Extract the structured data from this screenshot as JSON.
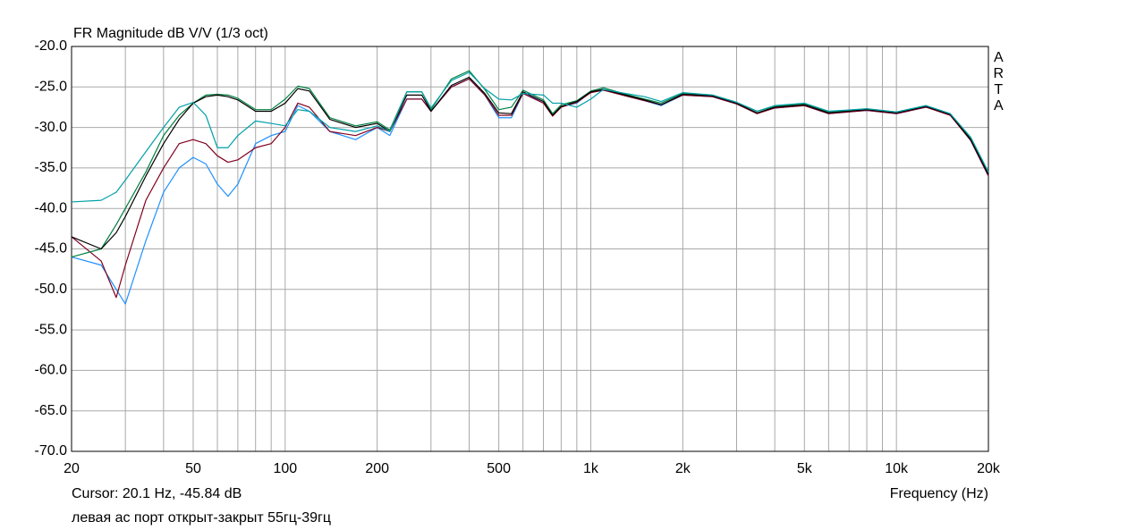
{
  "chart_data": {
    "type": "line",
    "title": "FR Magnitude dB V/V (1/3 oct)",
    "brand": "ARTA",
    "cursor_text": "Cursor: 20.1 Hz, -45.84 dB",
    "x_label": "Frequency (Hz)",
    "caption": "левая ас порт открыт-закрыт 55гц-39гц",
    "x_scale": "log",
    "grid": true,
    "xlim": [
      20,
      20000
    ],
    "ylim": [
      -70,
      -20
    ],
    "xticks": [
      20,
      50,
      100,
      200,
      500,
      {
        "value": 1000,
        "label": "1k"
      },
      {
        "value": 2000,
        "label": "2k"
      },
      {
        "value": 5000,
        "label": "5k"
      },
      {
        "value": 10000,
        "label": "10k"
      },
      {
        "value": 20000,
        "label": "20k"
      }
    ],
    "x_minor_grid": [
      30,
      40,
      60,
      70,
      80,
      90,
      300,
      400,
      600,
      700,
      800,
      900,
      3000,
      4000,
      6000,
      7000,
      8000,
      9000
    ],
    "yticks": [
      {
        "value": -20,
        "label": "-20.0"
      },
      {
        "value": -25,
        "label": "-25.0"
      },
      {
        "value": -30,
        "label": "-30.0"
      },
      {
        "value": -35,
        "label": "-35.0"
      },
      {
        "value": -40,
        "label": "-40.0"
      },
      {
        "value": -45,
        "label": "-45.0"
      },
      {
        "value": -50,
        "label": "-50.0"
      },
      {
        "value": -55,
        "label": "-55.0"
      },
      {
        "value": -60,
        "label": "-60.0"
      },
      {
        "value": -65,
        "label": "-65.0"
      },
      {
        "value": -70,
        "label": "-70.0"
      }
    ],
    "x": [
      20,
      25,
      28,
      30,
      35,
      40,
      45,
      50,
      55,
      60,
      65,
      70,
      80,
      90,
      100,
      110,
      120,
      140,
      170,
      200,
      220,
      250,
      280,
      300,
      350,
      400,
      450,
      500,
      550,
      600,
      700,
      750,
      800,
      900,
      1000,
      1100,
      1300,
      1500,
      1700,
      2000,
      2500,
      3000,
      3500,
      4000,
      5000,
      6000,
      8000,
      10000,
      12500,
      15000,
      17500,
      20000
    ],
    "series": [
      {
        "color": "#1e90ff",
        "values": [
          -46,
          -47,
          -50,
          -51.8,
          -44,
          -38,
          -35,
          -33.7,
          -34.5,
          -37,
          -38.5,
          -37,
          -32,
          -31,
          -30.5,
          -27.3,
          -28,
          -30.5,
          -31.5,
          -30,
          -31,
          -26.5,
          -26.5,
          -28,
          -25,
          -24,
          -26,
          -28.8,
          -28.8,
          -25.8,
          -26.8,
          -28.5,
          -27.4,
          -27,
          -25.6,
          -25.3,
          -26.1,
          -26.7,
          -27.3,
          -26,
          -26.2,
          -27.1,
          -28.2,
          -27.6,
          -27.3,
          -28.3,
          -27.9,
          -28.3,
          -27.5,
          -28.4,
          -31.6,
          -36
        ]
      },
      {
        "color": "#800020",
        "values": [
          -43.5,
          -46.5,
          -51,
          -47,
          -39,
          -35,
          -32,
          -31.5,
          -32,
          -33.5,
          -34.3,
          -34,
          -32.5,
          -32,
          -30,
          -27,
          -27.5,
          -30.5,
          -31,
          -30,
          -30.5,
          -26.5,
          -26.5,
          -28,
          -25,
          -24,
          -26,
          -28.5,
          -28.5,
          -25.8,
          -27,
          -28.6,
          -27.5,
          -26.9,
          -25.7,
          -25.4,
          -26.1,
          -26.7,
          -27.2,
          -26,
          -26.2,
          -27.1,
          -28.3,
          -27.6,
          -27.3,
          -28.3,
          -27.9,
          -28.3,
          -27.5,
          -28.5,
          -31.6,
          -36
        ]
      },
      {
        "color": "#008040",
        "values": [
          -46,
          -45,
          -42,
          -40,
          -35.5,
          -31,
          -28.5,
          -27,
          -26,
          -25.9,
          -26,
          -26.4,
          -27.8,
          -27.8,
          -26.5,
          -24.9,
          -25.2,
          -28.8,
          -29.8,
          -29.3,
          -30.3,
          -25.6,
          -25.6,
          -27.8,
          -24,
          -23,
          -25.3,
          -27.8,
          -27.5,
          -25.4,
          -26.6,
          -28.3,
          -27.2,
          -26.7,
          -25.5,
          -25.1,
          -25.9,
          -26.5,
          -27,
          -25.8,
          -26,
          -26.9,
          -28,
          -27.4,
          -27.1,
          -28.1,
          -27.7,
          -28.1,
          -27.3,
          -28.3,
          -31.3,
          -35.6
        ]
      },
      {
        "color": "#000000",
        "values": [
          -43.5,
          -45,
          -43,
          -41,
          -36,
          -32,
          -29,
          -27,
          -26.2,
          -26,
          -26.2,
          -26.6,
          -28,
          -28,
          -27,
          -25.2,
          -25.5,
          -29,
          -30,
          -29.5,
          -30.5,
          -26,
          -26,
          -28,
          -24.8,
          -23.8,
          -25.8,
          -28.2,
          -28.3,
          -25.6,
          -26.8,
          -28.5,
          -27.4,
          -26.8,
          -25.6,
          -25.3,
          -26,
          -26.6,
          -27.2,
          -25.9,
          -26.1,
          -27,
          -28.2,
          -27.5,
          -27.2,
          -28.2,
          -27.8,
          -28.2,
          -27.4,
          -28.4,
          -31.5,
          -35.8
        ]
      },
      {
        "color": "#00a0a8",
        "values": [
          -39.2,
          -39,
          -38,
          -36.5,
          -33,
          -30,
          -27.5,
          -26.9,
          -28.5,
          -32.5,
          -32.5,
          -31,
          -29.2,
          -29.5,
          -29.8,
          -27.8,
          -28,
          -30,
          -30.5,
          -29.8,
          -30.5,
          -25.6,
          -25.6,
          -27.6,
          -24.2,
          -23.2,
          -25.2,
          -26.5,
          -26.6,
          -25.8,
          -26,
          -27,
          -27,
          -27.5,
          -26.5,
          -25.3,
          -25.8,
          -26.2,
          -26.8,
          -25.7,
          -26,
          -26.9,
          -28,
          -27.3,
          -27,
          -28,
          -27.7,
          -28.1,
          -27.3,
          -28.3,
          -31.2,
          -35.5
        ]
      }
    ]
  }
}
